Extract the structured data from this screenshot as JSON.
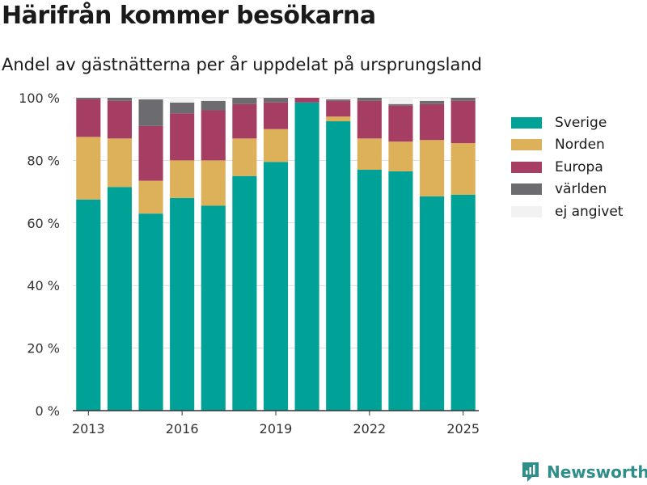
{
  "title": "Härifrån kommer besökarna",
  "subtitle": "Andel av gästnätterna per år uppdelat på ursprungsland",
  "brand": {
    "name": "Newsworthy",
    "icon": "newsworthy-logo-icon"
  },
  "colors": {
    "Sverige": "#00a197",
    "Norden": "#ddb05a",
    "Europa": "#a63e63",
    "världen": "#6b6b70",
    "ej angivet": "#f2f2f2"
  },
  "legend": [
    "Sverige",
    "Norden",
    "Europa",
    "världen",
    "ej angivet"
  ],
  "chart_data": {
    "type": "bar",
    "stacked": true,
    "categories": [
      2013,
      2014,
      2015,
      2016,
      2017,
      2018,
      2019,
      2020,
      2021,
      2022,
      2023,
      2024,
      2025
    ],
    "xticks": [
      "2013",
      "2016",
      "2019",
      "2022",
      "2025"
    ],
    "yticks": [
      "0 %",
      "20 %",
      "40 %",
      "60 %",
      "80 %",
      "100 %"
    ],
    "ylim": [
      0,
      100
    ],
    "grid": true,
    "legend_position": "right",
    "series": [
      {
        "name": "Sverige",
        "values": [
          67.5,
          71.5,
          63,
          68,
          65.5,
          75,
          79.5,
          98.5,
          92.5,
          77,
          76.5,
          68.5,
          69
        ]
      },
      {
        "name": "Norden",
        "values": [
          20,
          15.5,
          10.5,
          12,
          14.5,
          12,
          10.5,
          0,
          1.5,
          10,
          9.5,
          18,
          16.5
        ]
      },
      {
        "name": "Europa",
        "values": [
          12,
          12,
          17.5,
          15,
          16,
          11,
          8.5,
          1.5,
          5,
          12,
          11.5,
          11.5,
          13.5
        ]
      },
      {
        "name": "världen",
        "values": [
          0.5,
          1,
          8.5,
          3.5,
          3,
          2,
          1.5,
          0,
          0.5,
          1,
          0.5,
          1,
          1
        ]
      },
      {
        "name": "ej angivet",
        "values": [
          0,
          0,
          0.5,
          1.5,
          1,
          0,
          0,
          0,
          0.5,
          0,
          2,
          1,
          0
        ]
      }
    ]
  }
}
